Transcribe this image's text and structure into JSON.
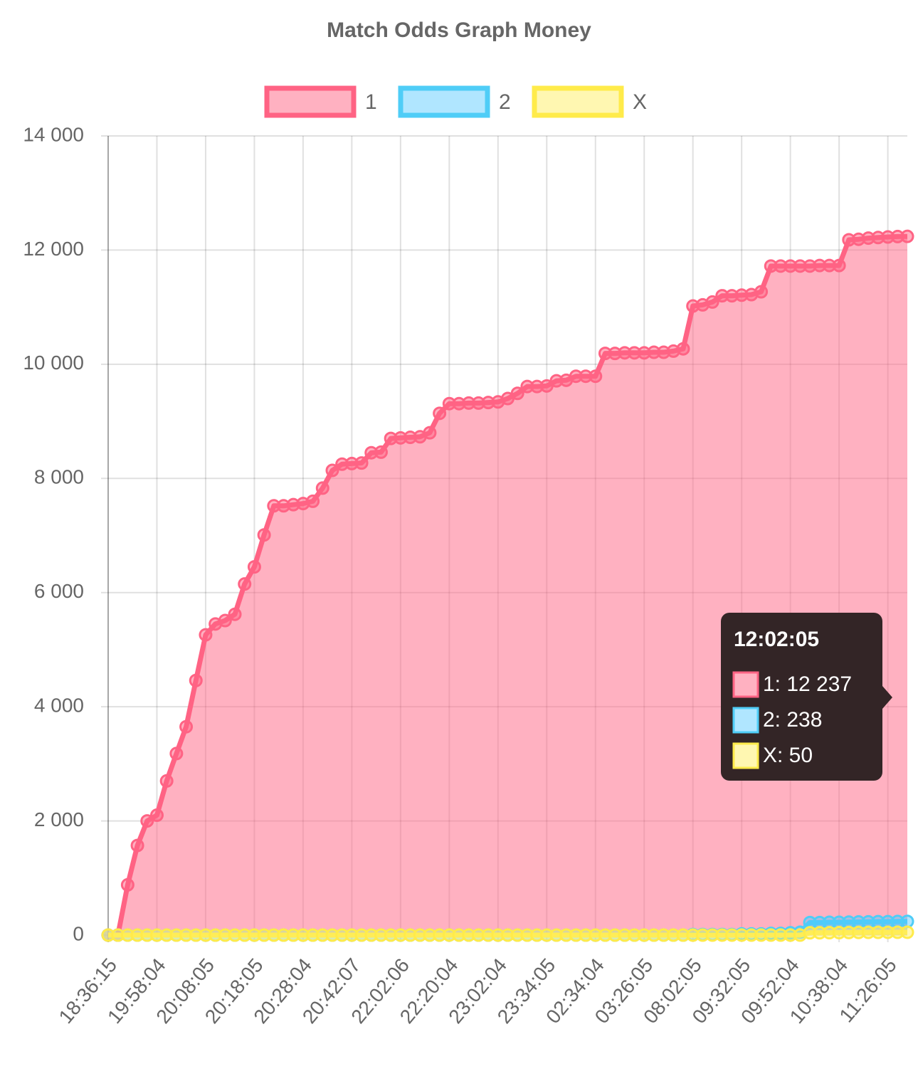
{
  "chart_data": {
    "type": "line",
    "title": "Match Odds Graph Money",
    "categories": [
      "18:36:15",
      null,
      null,
      null,
      null,
      "19:58:04",
      null,
      null,
      null,
      null,
      "20:08:05",
      null,
      null,
      null,
      null,
      "20:18:05",
      null,
      null,
      null,
      null,
      "20:28:04",
      null,
      null,
      null,
      null,
      "20:42:07",
      null,
      null,
      null,
      null,
      "22:02:06",
      null,
      null,
      null,
      null,
      "22:20:04",
      null,
      null,
      null,
      null,
      "23:02:04",
      null,
      null,
      null,
      null,
      "23:34:05",
      null,
      null,
      null,
      null,
      "02:34:04",
      null,
      null,
      null,
      null,
      "03:26:05",
      null,
      null,
      null,
      null,
      "08:02:05",
      null,
      null,
      null,
      null,
      "09:32:05",
      null,
      null,
      null,
      null,
      "09:52:04",
      null,
      null,
      null,
      null,
      "10:38:04",
      null,
      null,
      null,
      null,
      "11:26:05",
      null,
      null
    ],
    "series": [
      {
        "name": "1",
        "color": "#ff6384",
        "fill": "rgba(255,99,132,0.5)",
        "values": [
          0,
          0,
          880,
          1570,
          2000,
          2100,
          2700,
          3180,
          3650,
          4460,
          5260,
          5450,
          5510,
          5620,
          6150,
          6450,
          7010,
          7520,
          7520,
          7540,
          7560,
          7600,
          7830,
          8140,
          8250,
          8260,
          8270,
          8450,
          8460,
          8700,
          8710,
          8720,
          8730,
          8800,
          9140,
          9310,
          9310,
          9320,
          9320,
          9330,
          9340,
          9400,
          9490,
          9610,
          9610,
          9620,
          9710,
          9720,
          9790,
          9790,
          9790,
          10190,
          10190,
          10200,
          10200,
          10200,
          10210,
          10210,
          10230,
          10270,
          11020,
          11040,
          11090,
          11200,
          11200,
          11210,
          11220,
          11270,
          11720,
          11720,
          11720,
          11720,
          11720,
          11730,
          11730,
          11730,
          12180,
          12190,
          12210,
          12220,
          12230,
          12237,
          12240
        ]
      },
      {
        "name": "2",
        "color": "#4fcdf7",
        "fill": "rgba(80,200,255,0.45)",
        "values": [
          0,
          0,
          0,
          0,
          0,
          0,
          0,
          0,
          0,
          0,
          0,
          0,
          0,
          0,
          0,
          0,
          0,
          0,
          0,
          0,
          0,
          0,
          0,
          0,
          0,
          0,
          0,
          0,
          0,
          0,
          0,
          0,
          0,
          0,
          0,
          0,
          0,
          0,
          0,
          0,
          0,
          0,
          0,
          0,
          0,
          0,
          0,
          0,
          0,
          0,
          0,
          0,
          0,
          0,
          0,
          0,
          0,
          0,
          0,
          0,
          10,
          10,
          10,
          10,
          10,
          20,
          20,
          20,
          30,
          30,
          40,
          50,
          220,
          220,
          225,
          225,
          228,
          230,
          232,
          235,
          236,
          238,
          240
        ]
      },
      {
        "name": "X",
        "color": "#ffeb4a",
        "fill": "rgba(255,240,100,0.5)",
        "values": [
          0,
          0,
          0,
          0,
          0,
          0,
          0,
          0,
          0,
          0,
          0,
          0,
          0,
          0,
          0,
          0,
          0,
          0,
          0,
          0,
          0,
          0,
          0,
          0,
          0,
          0,
          0,
          0,
          0,
          0,
          0,
          0,
          0,
          0,
          0,
          0,
          0,
          0,
          0,
          0,
          0,
          0,
          0,
          0,
          0,
          0,
          0,
          0,
          0,
          0,
          0,
          0,
          0,
          0,
          0,
          0,
          0,
          0,
          0,
          0,
          0,
          0,
          0,
          0,
          0,
          0,
          0,
          0,
          0,
          0,
          0,
          0,
          40,
          40,
          42,
          44,
          45,
          46,
          48,
          48,
          49,
          50,
          50
        ]
      }
    ],
    "ylim": [
      0,
      14000
    ],
    "yticks": [
      0,
      {
        "value": 2000,
        "label": "2 000"
      },
      {
        "value": 4000,
        "label": "4 000"
      },
      {
        "value": 6000,
        "label": "6 000"
      },
      {
        "value": 8000,
        "label": "8 000"
      },
      {
        "value": 10000,
        "label": "10 000"
      },
      {
        "value": 12000,
        "label": "12 000"
      },
      {
        "value": 14000,
        "label": "14 000"
      }
    ],
    "grid": true,
    "legend": "top",
    "tooltip": {
      "title": "12:02:05",
      "items": [
        "1: 12 237",
        "2: 238",
        "X: 50"
      ]
    }
  }
}
